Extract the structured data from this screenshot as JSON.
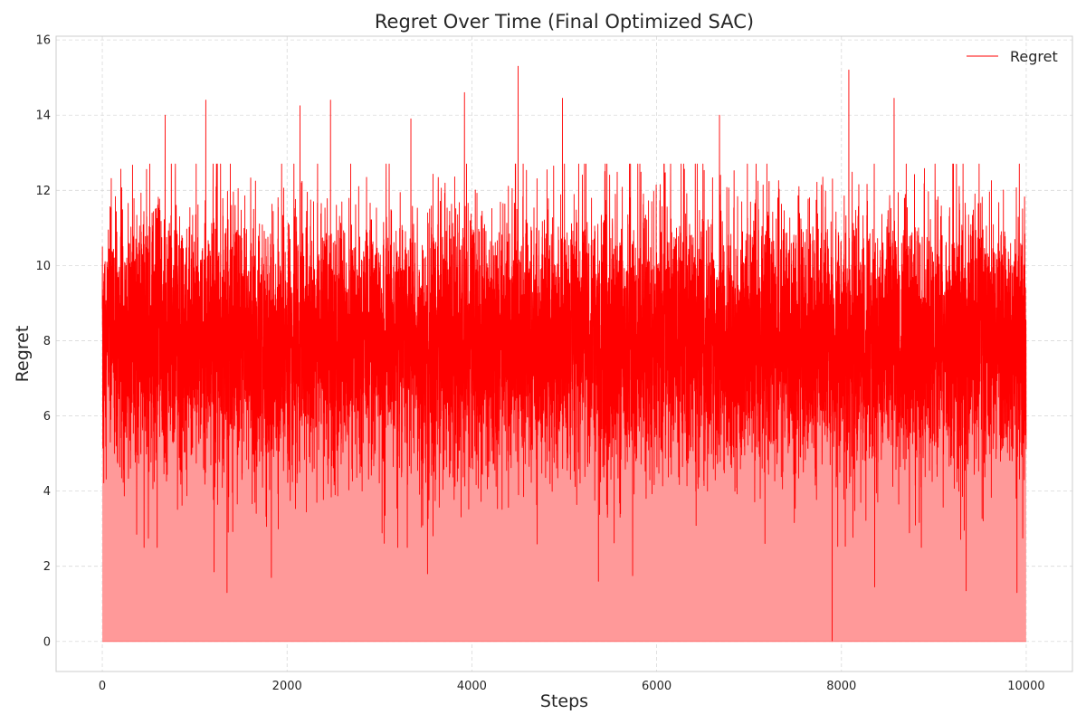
{
  "chart_data": {
    "type": "area",
    "title": "Regret Over Time (Final Optimized SAC)",
    "xlabel": "Steps",
    "ylabel": "Regret",
    "xlim": [
      -500,
      10500
    ],
    "ylim": [
      -0.8,
      16.1
    ],
    "x_ticks": [
      0,
      2000,
      4000,
      6000,
      8000,
      10000
    ],
    "y_ticks": [
      0,
      2,
      4,
      6,
      8,
      10,
      12,
      14,
      16
    ],
    "grid": true,
    "legend_position": "top-right",
    "series": [
      {
        "name": "Regret",
        "color": "#ff0000",
        "fill_color": "#ff9999",
        "n_points": 10000,
        "x_range": [
          0,
          9999
        ],
        "mean": 8.0,
        "typical_range": [
          4.5,
          11.5
        ],
        "peaks": [
          {
            "x": 4500,
            "y": 15.3
          },
          {
            "x": 8080,
            "y": 15.2
          },
          {
            "x": 4980,
            "y": 14.45
          },
          {
            "x": 3920,
            "y": 14.6
          },
          {
            "x": 8570,
            "y": 14.45
          },
          {
            "x": 1120,
            "y": 14.4
          },
          {
            "x": 2470,
            "y": 14.4
          },
          {
            "x": 2140,
            "y": 14.25
          },
          {
            "x": 680,
            "y": 14.0
          },
          {
            "x": 6680,
            "y": 14.0
          },
          {
            "x": 3340,
            "y": 13.9
          }
        ],
        "troughs": [
          {
            "x": 7900,
            "y": 0.0
          },
          {
            "x": 1350,
            "y": 1.3
          },
          {
            "x": 9350,
            "y": 1.35
          },
          {
            "x": 9900,
            "y": 1.3
          },
          {
            "x": 8360,
            "y": 1.45
          },
          {
            "x": 5370,
            "y": 1.6
          },
          {
            "x": 1830,
            "y": 1.7
          },
          {
            "x": 5740,
            "y": 1.75
          },
          {
            "x": 3520,
            "y": 1.8
          },
          {
            "x": 1210,
            "y": 1.85
          }
        ]
      }
    ]
  }
}
